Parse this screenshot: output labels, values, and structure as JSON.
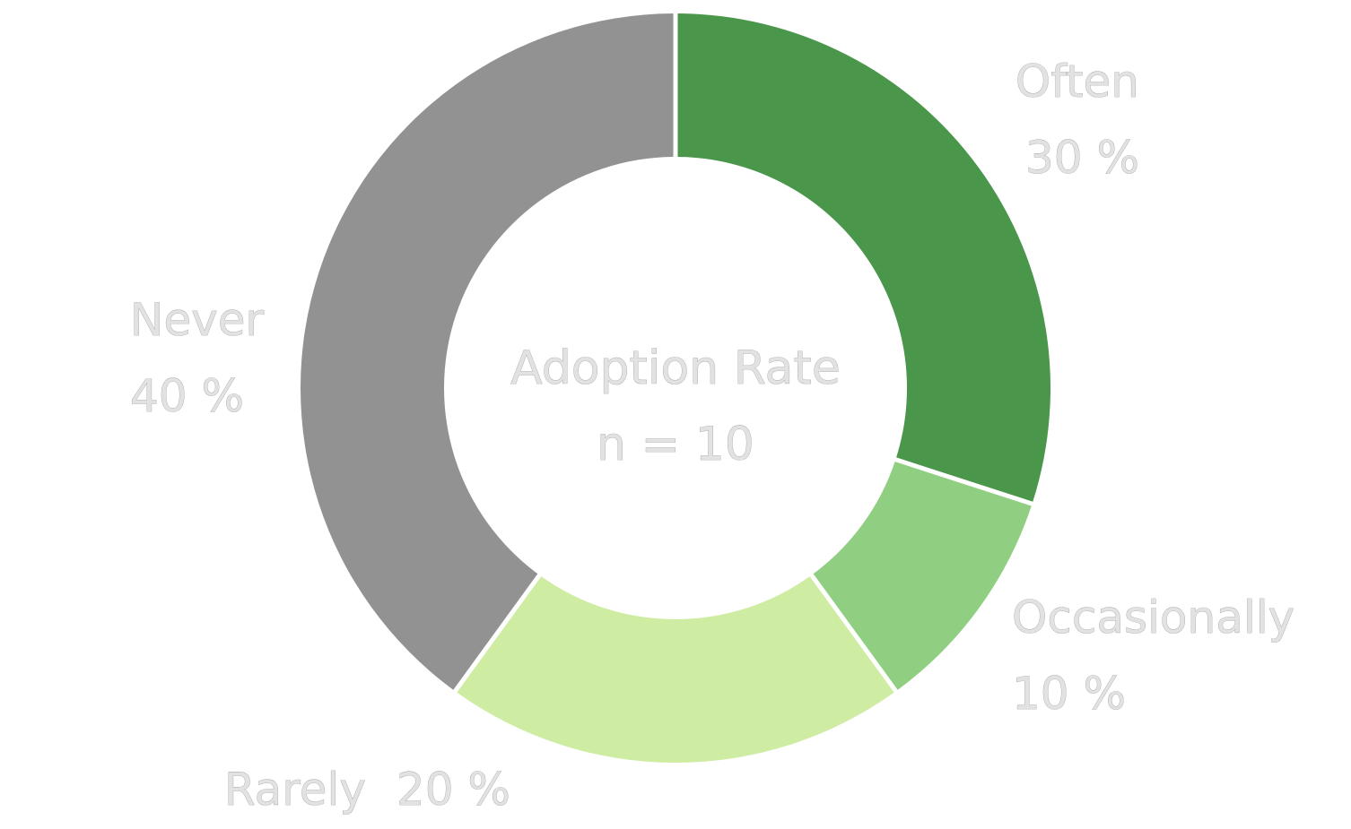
{
  "chart_data": {
    "type": "pie",
    "variant": "donut",
    "center_label": {
      "line1": "Adoption Rate",
      "line2": "n = 10"
    },
    "slices": [
      {
        "name": "Often",
        "value": 30,
        "value_label": "30 %",
        "color": "#4a964b"
      },
      {
        "name": "Occasionally",
        "value": 10,
        "value_label": "10 %",
        "color": "#90ce82"
      },
      {
        "name": "Rarely",
        "value": 20,
        "value_label": "20 %",
        "color": "#ceeca2"
      },
      {
        "name": "Never",
        "value": 40,
        "value_label": "40 %",
        "color": "#929292"
      }
    ],
    "label_color": "#e2e2e2",
    "start_angle": "top",
    "direction": "clockwise"
  }
}
